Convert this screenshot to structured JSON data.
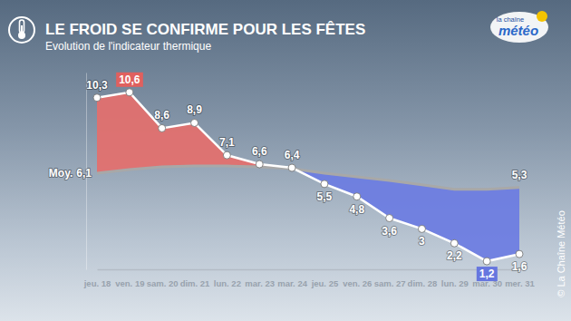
{
  "chart_data": {
    "type": "line",
    "title": "LE FROID SE CONFIRME POUR LES FÊTES",
    "subtitle": "Evolution de l'indicateur thermique",
    "annotations": [
      "la chaîne",
      "météo",
      "© La Chaîne Météo"
    ],
    "categories": [
      "jeu. 18",
      "ven. 19",
      "sam. 20",
      "dim. 21",
      "lun. 22",
      "mar. 23",
      "mar. 24",
      "jeu. 25",
      "ven. 26",
      "sam. 27",
      "dim. 28",
      "lun. 29",
      "mar. 30",
      "mer. 31"
    ],
    "series": [
      {
        "color": "#ffffff",
        "marker": "circle",
        "values": [
          10.3,
          10.6,
          8.6,
          8.9,
          7.1,
          6.6,
          6.4,
          5.5,
          4.8,
          3.6,
          3,
          2.2,
          1.2,
          1.6
        ],
        "value_labels": [
          "10,3",
          "10,6",
          "8,6",
          "8,9",
          "7,1",
          "6,6",
          "6,4",
          "5,5",
          "4,8",
          "3,6",
          "3",
          "2,2",
          "1,2",
          "1,6"
        ]
      },
      {
        "name": "Moy.",
        "color": "#a8a8a8",
        "marker": "none",
        "values": [
          6.1,
          6.3,
          6.45,
          6.5,
          6.5,
          6.45,
          6.35,
          6.1,
          5.9,
          5.7,
          5.45,
          5.2,
          5.2,
          5.3
        ],
        "value_labels": [
          "6,1",
          null,
          null,
          null,
          null,
          null,
          null,
          null,
          null,
          null,
          null,
          null,
          null,
          "5,3"
        ]
      }
    ],
    "ylim": [
      0.75,
      11.7
    ],
    "yticks": [],
    "tick_labels": "x",
    "data_labels": true,
    "grid": false
  }
}
